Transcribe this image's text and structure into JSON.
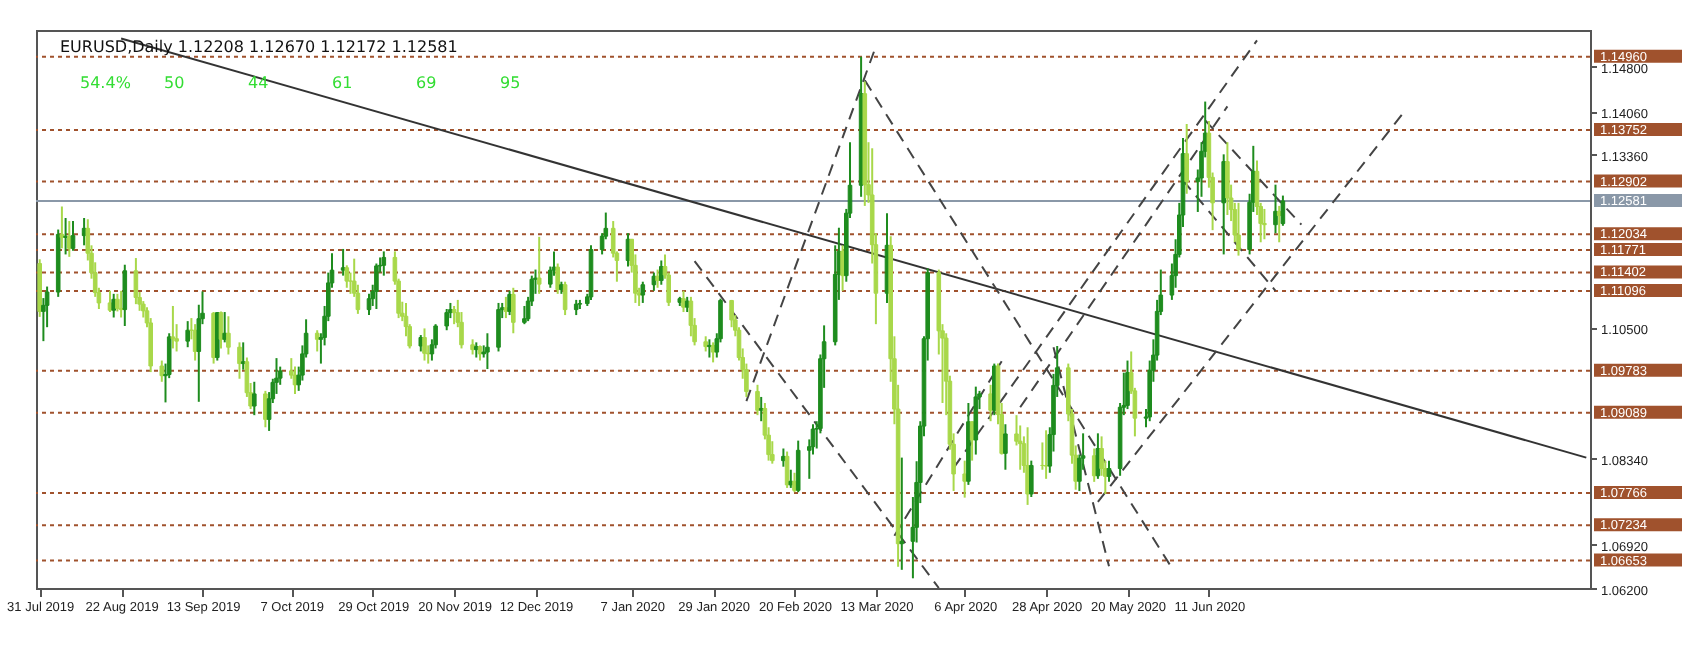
{
  "chart_data": {
    "type": "candlestick",
    "title": "EURUSD,Daily 1.12208 1.12670 1.12172 1.12581",
    "annotations": [
      "54.4%",
      "50",
      "44",
      "61",
      "69",
      "95"
    ],
    "xlim": [
      "2019-07-30",
      "2020-09-22"
    ],
    "xticks": [
      {
        "value": "2019-07-31",
        "label": "31 Jul 2019"
      },
      {
        "value": "2019-08-22",
        "label": "22 Aug 2019"
      },
      {
        "value": "2019-09-13",
        "label": "13 Sep 2019"
      },
      {
        "value": "2019-10-07",
        "label": "7 Oct 2019"
      },
      {
        "value": "2019-10-29",
        "label": "29 Oct 2019"
      },
      {
        "value": "2019-11-20",
        "label": "20 Nov 2019"
      },
      {
        "value": "2019-12-12",
        "label": "12 Dec 2019"
      },
      {
        "value": "2020-01-07",
        "label": "7 Jan 2020"
      },
      {
        "value": "2020-01-29",
        "label": "29 Jan 2020"
      },
      {
        "value": "2020-02-20",
        "label": "20 Feb 2020"
      },
      {
        "value": "2020-03-13",
        "label": "13 Mar 2020"
      },
      {
        "value": "2020-04-06",
        "label": "6 Apr 2020"
      },
      {
        "value": "2020-04-28",
        "label": "28 Apr 2020"
      },
      {
        "value": "2020-05-20",
        "label": "20 May 2020"
      },
      {
        "value": "2020-06-11",
        "label": "11 Jun 2020"
      }
    ],
    "ylim": [
      1.062,
      1.154
    ],
    "yticks": [
      {
        "value": 1.148,
        "label": "1.14800"
      },
      {
        "value": 1.1406,
        "label": "1.14060"
      },
      {
        "value": 1.1336,
        "label": "1.13360"
      },
      {
        "value": 1.105,
        "label": "1.10500"
      },
      {
        "value": 1.0834,
        "label": "1.08340"
      },
      {
        "value": 1.0692,
        "label": "1.06920"
      },
      {
        "value": 1.062,
        "label": "1.06200"
      }
    ],
    "x": [
      "2019-07-31",
      "2019-08-01",
      "2019-08-02",
      "2019-08-05",
      "2019-08-06",
      "2019-08-07",
      "2019-08-08",
      "2019-08-09",
      "2019-08-12",
      "2019-08-13",
      "2019-08-14",
      "2019-08-15",
      "2019-08-16",
      "2019-08-19",
      "2019-08-20",
      "2019-08-21",
      "2019-08-22",
      "2019-08-23",
      "2019-08-26",
      "2019-08-27",
      "2019-08-28",
      "2019-08-29",
      "2019-08-30",
      "2019-09-02",
      "2019-09-03",
      "2019-09-04",
      "2019-09-05",
      "2019-09-06",
      "2019-09-09",
      "2019-09-10",
      "2019-09-11",
      "2019-09-12",
      "2019-09-13",
      "2019-09-16",
      "2019-09-17",
      "2019-09-18",
      "2019-09-19",
      "2019-09-20",
      "2019-09-23",
      "2019-09-24",
      "2019-09-25",
      "2019-09-26",
      "2019-09-27",
      "2019-09-30",
      "2019-10-01",
      "2019-10-02",
      "2019-10-03",
      "2019-10-04",
      "2019-10-07",
      "2019-10-08",
      "2019-10-09",
      "2019-10-10",
      "2019-10-11",
      "2019-10-14",
      "2019-10-15",
      "2019-10-16",
      "2019-10-17",
      "2019-10-18",
      "2019-10-21",
      "2019-10-22",
      "2019-10-23",
      "2019-10-24",
      "2019-10-25",
      "2019-10-28",
      "2019-10-29",
      "2019-10-30",
      "2019-10-31",
      "2019-11-01",
      "2019-11-04",
      "2019-11-05",
      "2019-11-06",
      "2019-11-07",
      "2019-11-08",
      "2019-11-11",
      "2019-11-12",
      "2019-11-13",
      "2019-11-14",
      "2019-11-15",
      "2019-11-18",
      "2019-11-19",
      "2019-11-20",
      "2019-11-21",
      "2019-11-22",
      "2019-11-25",
      "2019-11-26",
      "2019-11-27",
      "2019-11-28",
      "2019-11-29",
      "2019-12-02",
      "2019-12-03",
      "2019-12-04",
      "2019-12-05",
      "2019-12-06",
      "2019-12-09",
      "2019-12-10",
      "2019-12-11",
      "2019-12-12",
      "2019-12-13",
      "2019-12-16",
      "2019-12-17",
      "2019-12-18",
      "2019-12-19",
      "2019-12-20",
      "2019-12-23",
      "2019-12-24",
      "2019-12-26",
      "2019-12-27",
      "2019-12-30",
      "2019-12-31",
      "2020-01-02",
      "2020-01-03",
      "2020-01-06",
      "2020-01-07",
      "2020-01-08",
      "2020-01-09",
      "2020-01-10",
      "2020-01-13",
      "2020-01-14",
      "2020-01-15",
      "2020-01-16",
      "2020-01-17",
      "2020-01-20",
      "2020-01-21",
      "2020-01-22",
      "2020-01-23",
      "2020-01-24",
      "2020-01-27",
      "2020-01-28",
      "2020-01-29",
      "2020-01-30",
      "2020-01-31",
      "2020-02-03",
      "2020-02-04",
      "2020-02-05",
      "2020-02-06",
      "2020-02-07",
      "2020-02-10",
      "2020-02-11",
      "2020-02-12",
      "2020-02-13",
      "2020-02-14",
      "2020-02-17",
      "2020-02-18",
      "2020-02-19",
      "2020-02-20",
      "2020-02-21",
      "2020-02-24",
      "2020-02-25",
      "2020-02-26",
      "2020-02-27",
      "2020-02-28",
      "2020-03-02",
      "2020-03-03",
      "2020-03-04",
      "2020-03-05",
      "2020-03-06",
      "2020-03-09",
      "2020-03-10",
      "2020-03-11",
      "2020-03-12",
      "2020-03-13",
      "2020-03-16",
      "2020-03-17",
      "2020-03-18",
      "2020-03-19",
      "2020-03-20",
      "2020-03-23",
      "2020-03-24",
      "2020-03-25",
      "2020-03-26",
      "2020-03-27",
      "2020-03-30",
      "2020-03-31",
      "2020-04-01",
      "2020-04-02",
      "2020-04-03",
      "2020-04-06",
      "2020-04-07",
      "2020-04-08",
      "2020-04-09",
      "2020-04-10",
      "2020-04-13",
      "2020-04-14",
      "2020-04-15",
      "2020-04-16",
      "2020-04-17",
      "2020-04-20",
      "2020-04-21",
      "2020-04-22",
      "2020-04-23",
      "2020-04-24",
      "2020-04-27",
      "2020-04-28",
      "2020-04-29",
      "2020-04-30",
      "2020-05-01",
      "2020-05-04",
      "2020-05-05",
      "2020-05-06",
      "2020-05-07",
      "2020-05-08",
      "2020-05-11",
      "2020-05-12",
      "2020-05-13",
      "2020-05-14",
      "2020-05-15",
      "2020-05-18",
      "2020-05-19",
      "2020-05-20",
      "2020-05-21",
      "2020-05-22",
      "2020-05-25",
      "2020-05-26",
      "2020-05-27",
      "2020-05-28",
      "2020-05-29",
      "2020-06-01",
      "2020-06-02",
      "2020-06-03",
      "2020-06-04",
      "2020-06-05",
      "2020-06-08",
      "2020-06-09",
      "2020-06-10",
      "2020-06-11",
      "2020-06-12",
      "2020-06-15",
      "2020-06-16",
      "2020-06-17",
      "2020-06-18",
      "2020-06-19",
      "2020-06-22",
      "2020-06-23",
      "2020-06-24",
      "2020-06-25",
      "2020-06-26",
      "2020-06-29",
      "2020-06-30",
      "2020-07-01"
    ],
    "ohlc": [
      [
        1.1155,
        1.1162,
        1.1067,
        1.1076
      ],
      [
        1.1076,
        1.1098,
        1.1027,
        1.1086
      ],
      [
        1.1086,
        1.1117,
        1.105,
        1.1108
      ],
      [
        1.1108,
        1.1211,
        1.11,
        1.1203
      ],
      [
        1.1203,
        1.1249,
        1.118,
        1.1198
      ],
      [
        1.1198,
        1.123,
        1.117,
        1.12
      ],
      [
        1.12,
        1.1225,
        1.1166,
        1.118
      ],
      [
        1.118,
        1.1225,
        1.1176,
        1.1201
      ],
      [
        1.1201,
        1.123,
        1.1185,
        1.1213
      ],
      [
        1.1213,
        1.1228,
        1.116,
        1.1172
      ],
      [
        1.1172,
        1.1185,
        1.113,
        1.114
      ],
      [
        1.114,
        1.1157,
        1.11,
        1.1107
      ],
      [
        1.1107,
        1.1115,
        1.108,
        1.109
      ],
      [
        1.109,
        1.111,
        1.1075,
        1.1078
      ],
      [
        1.1078,
        1.1105,
        1.1066,
        1.1096
      ],
      [
        1.1096,
        1.1105,
        1.1076,
        1.1081
      ],
      [
        1.1081,
        1.111,
        1.1066,
        1.1079
      ],
      [
        1.1079,
        1.1153,
        1.1052,
        1.1143
      ],
      [
        1.1143,
        1.1164,
        1.1088,
        1.1099
      ],
      [
        1.1099,
        1.1108,
        1.1077,
        1.1088
      ],
      [
        1.1088,
        1.1093,
        1.1066,
        1.1077
      ],
      [
        1.1077,
        1.1083,
        1.105,
        1.1057
      ],
      [
        1.1057,
        1.1065,
        1.0976,
        1.0986
      ],
      [
        1.0986,
        1.0995,
        1.096,
        1.097
      ],
      [
        1.097,
        1.099,
        1.0926,
        1.0972
      ],
      [
        1.0972,
        1.104,
        1.0966,
        1.1034
      ],
      [
        1.1034,
        1.1085,
        1.1015,
        1.1031
      ],
      [
        1.1031,
        1.1055,
        1.101,
        1.1027
      ],
      [
        1.1027,
        1.106,
        1.1017,
        1.1045
      ],
      [
        1.1045,
        1.1065,
        1.103,
        1.1045
      ],
      [
        1.1045,
        1.1055,
        1.0995,
        1.101
      ],
      [
        1.101,
        1.1087,
        1.0927,
        1.1064
      ],
      [
        1.1064,
        1.1109,
        1.1055,
        1.1073
      ],
      [
        1.1073,
        1.1075,
        1.099,
        1.1
      ],
      [
        1.1,
        1.1075,
        1.0995,
        1.1074
      ],
      [
        1.1074,
        1.1076,
        1.1015,
        1.103
      ],
      [
        1.103,
        1.1075,
        1.1025,
        1.104
      ],
      [
        1.104,
        1.1068,
        1.1005,
        1.1017
      ],
      [
        1.1017,
        1.1025,
        1.0965,
        1.099
      ],
      [
        1.099,
        1.1025,
        1.098,
        1.0993
      ],
      [
        1.0993,
        1.1,
        1.0935,
        1.0942
      ],
      [
        1.0942,
        1.0958,
        1.0915,
        1.092
      ],
      [
        1.092,
        1.096,
        1.0905,
        1.094
      ],
      [
        1.094,
        1.0945,
        1.0885,
        1.0898
      ],
      [
        1.0898,
        1.0943,
        1.0879,
        1.0932
      ],
      [
        1.0932,
        1.0965,
        1.0925,
        1.0959
      ],
      [
        1.0959,
        1.0999,
        1.094,
        1.0966
      ],
      [
        1.0966,
        1.0985,
        1.0955,
        1.0978
      ],
      [
        1.0978,
        1.0999,
        1.0965,
        1.0971
      ],
      [
        1.0971,
        1.0985,
        1.094,
        1.0955
      ],
      [
        1.0955,
        1.0985,
        1.0945,
        1.0971
      ],
      [
        1.0971,
        1.102,
        1.0962,
        1.1006
      ],
      [
        1.1006,
        1.1063,
        1.1,
        1.104
      ],
      [
        1.104,
        1.1045,
        1.101,
        1.103
      ],
      [
        1.103,
        1.104,
        1.099,
        1.1033
      ],
      [
        1.1033,
        1.1085,
        1.102,
        1.1068
      ],
      [
        1.1068,
        1.114,
        1.106,
        1.1123
      ],
      [
        1.1123,
        1.1172,
        1.1115,
        1.1144
      ],
      [
        1.1144,
        1.1179,
        1.1135,
        1.1148
      ],
      [
        1.1148,
        1.1152,
        1.1115,
        1.1126
      ],
      [
        1.1126,
        1.114,
        1.1105,
        1.1126
      ],
      [
        1.1126,
        1.1163,
        1.11,
        1.1106
      ],
      [
        1.1106,
        1.112,
        1.1072,
        1.1079
      ],
      [
        1.1079,
        1.1105,
        1.107,
        1.1097
      ],
      [
        1.1097,
        1.112,
        1.1085,
        1.1109
      ],
      [
        1.1109,
        1.1155,
        1.108,
        1.1151
      ],
      [
        1.1151,
        1.1165,
        1.114,
        1.1152
      ],
      [
        1.1152,
        1.1175,
        1.1135,
        1.1165
      ],
      [
        1.1165,
        1.1175,
        1.112,
        1.1126
      ],
      [
        1.1126,
        1.113,
        1.1065,
        1.1073
      ],
      [
        1.1073,
        1.1092,
        1.106,
        1.1068
      ],
      [
        1.1068,
        1.109,
        1.1035,
        1.1051
      ],
      [
        1.1051,
        1.1055,
        1.1015,
        1.1019
      ],
      [
        1.1019,
        1.1037,
        1.101,
        1.1033
      ],
      [
        1.1033,
        1.1048,
        1.0995,
        1.1007
      ],
      [
        1.1007,
        1.102,
        1.099,
        1.1006
      ],
      [
        1.1006,
        1.103,
        1.0995,
        1.1021
      ],
      [
        1.1021,
        1.1055,
        1.1015,
        1.1052
      ],
      [
        1.1052,
        1.108,
        1.1045,
        1.1074
      ],
      [
        1.1074,
        1.109,
        1.1065,
        1.1079
      ],
      [
        1.1079,
        1.1085,
        1.1055,
        1.1074
      ],
      [
        1.1074,
        1.1095,
        1.105,
        1.1058
      ],
      [
        1.1058,
        1.1075,
        1.1015,
        1.1021
      ],
      [
        1.1021,
        1.103,
        1.1005,
        1.1013
      ],
      [
        1.1013,
        1.1025,
        1.1,
        1.1018
      ],
      [
        1.1018,
        1.102,
        1.0995,
        1.1006
      ],
      [
        1.1006,
        1.102,
        1.1,
        1.1009
      ],
      [
        1.1009,
        1.104,
        1.0981,
        1.1017
      ],
      [
        1.1017,
        1.109,
        1.101,
        1.1079
      ],
      [
        1.1079,
        1.109,
        1.1065,
        1.1082
      ],
      [
        1.1082,
        1.11,
        1.1065,
        1.1076
      ],
      [
        1.1076,
        1.111,
        1.107,
        1.1104
      ],
      [
        1.1104,
        1.1115,
        1.104,
        1.1058
      ],
      [
        1.1058,
        1.1085,
        1.1055,
        1.1064
      ],
      [
        1.1064,
        1.11,
        1.106,
        1.1093
      ],
      [
        1.1093,
        1.1135,
        1.1085,
        1.1129
      ],
      [
        1.1129,
        1.1145,
        1.1105,
        1.1131
      ],
      [
        1.1131,
        1.1199,
        1.1105,
        1.1121
      ],
      [
        1.1121,
        1.115,
        1.1115,
        1.1144
      ],
      [
        1.1144,
        1.1175,
        1.1135,
        1.1149
      ],
      [
        1.1149,
        1.1155,
        1.1105,
        1.1112
      ],
      [
        1.1112,
        1.1125,
        1.1105,
        1.112
      ],
      [
        1.112,
        1.1125,
        1.107,
        1.1079
      ],
      [
        1.1079,
        1.1095,
        1.107,
        1.1088
      ],
      [
        1.1088,
        1.1095,
        1.108,
        1.1089
      ],
      [
        1.1089,
        1.1105,
        1.1085,
        1.11
      ],
      [
        1.11,
        1.1185,
        1.1095,
        1.1178
      ],
      [
        1.1178,
        1.1205,
        1.117,
        1.12
      ],
      [
        1.12,
        1.1239,
        1.1195,
        1.1213
      ],
      [
        1.1213,
        1.1225,
        1.1165,
        1.1172
      ],
      [
        1.1172,
        1.1175,
        1.1125,
        1.116
      ],
      [
        1.116,
        1.1205,
        1.115,
        1.1195
      ],
      [
        1.1195,
        1.1195,
        1.114,
        1.1152
      ],
      [
        1.1152,
        1.117,
        1.109,
        1.1106
      ],
      [
        1.1106,
        1.1115,
        1.1085,
        1.1103
      ],
      [
        1.1103,
        1.1125,
        1.109,
        1.112
      ],
      [
        1.112,
        1.114,
        1.111,
        1.1134
      ],
      [
        1.1134,
        1.1145,
        1.1115,
        1.1127
      ],
      [
        1.1127,
        1.116,
        1.112,
        1.115
      ],
      [
        1.115,
        1.117,
        1.113,
        1.1136
      ],
      [
        1.1136,
        1.114,
        1.1085,
        1.1091
      ],
      [
        1.1091,
        1.11,
        1.1085,
        1.1097
      ],
      [
        1.1097,
        1.111,
        1.1075,
        1.1083
      ],
      [
        1.1083,
        1.11,
        1.1075,
        1.1093
      ],
      [
        1.1093,
        1.11,
        1.1035,
        1.1053
      ],
      [
        1.1053,
        1.1065,
        1.102,
        1.1026
      ],
      [
        1.1026,
        1.1035,
        1.101,
        1.1018
      ],
      [
        1.1018,
        1.103,
        1.1,
        1.102
      ],
      [
        1.102,
        1.1025,
        1.0992,
        1.1009
      ],
      [
        1.1009,
        1.104,
        1.1,
        1.1031
      ],
      [
        1.1031,
        1.1097,
        1.1025,
        1.1094
      ],
      [
        1.1094,
        1.1095,
        1.105,
        1.1062
      ],
      [
        1.1062,
        1.107,
        1.1035,
        1.1045
      ],
      [
        1.1045,
        1.105,
        1.0995,
        1.1
      ],
      [
        1.1,
        1.1015,
        1.0965,
        1.098
      ],
      [
        1.098,
        1.099,
        1.0935,
        1.0944
      ],
      [
        1.0944,
        1.0955,
        1.0905,
        1.0913
      ],
      [
        1.0913,
        1.0935,
        1.0895,
        1.0916
      ],
      [
        1.0916,
        1.0925,
        1.0865,
        1.0872
      ],
      [
        1.0872,
        1.0885,
        1.083,
        1.084
      ],
      [
        1.084,
        1.0862,
        1.0825,
        1.083
      ],
      [
        1.083,
        1.085,
        1.082,
        1.0837
      ],
      [
        1.0837,
        1.0845,
        1.0785,
        1.079
      ],
      [
        1.079,
        1.0815,
        1.0785,
        1.0796
      ],
      [
        1.0796,
        1.081,
        1.0778,
        1.0781
      ],
      [
        1.0781,
        1.0863,
        1.0778,
        1.0847
      ],
      [
        1.0847,
        1.0865,
        1.08,
        1.0853
      ],
      [
        1.0853,
        1.089,
        1.084,
        1.0882
      ],
      [
        1.0882,
        1.0895,
        1.085,
        1.0883
      ],
      [
        1.0883,
        1.1005,
        1.0875,
        1.0998
      ],
      [
        1.0998,
        1.1053,
        1.095,
        1.1026
      ],
      [
        1.1026,
        1.1185,
        1.102,
        1.1137
      ],
      [
        1.1137,
        1.1214,
        1.1095,
        1.1175
      ],
      [
        1.1175,
        1.1185,
        1.111,
        1.1135
      ],
      [
        1.1135,
        1.1245,
        1.1125,
        1.1238
      ],
      [
        1.1238,
        1.1355,
        1.123,
        1.1284
      ],
      [
        1.1284,
        1.1496,
        1.1265,
        1.1435
      ],
      [
        1.1435,
        1.1455,
        1.125,
        1.1285
      ],
      [
        1.1285,
        1.1355,
        1.1255,
        1.1268
      ],
      [
        1.1268,
        1.1345,
        1.1155,
        1.1186
      ],
      [
        1.1186,
        1.1205,
        1.1055,
        1.1106
      ],
      [
        1.1106,
        1.1238,
        1.109,
        1.1185
      ],
      [
        1.1185,
        1.12,
        1.096,
        1.0998
      ],
      [
        1.0998,
        1.1035,
        1.089,
        1.0915
      ],
      [
        1.0915,
        1.0955,
        1.0655,
        1.0693
      ],
      [
        1.0693,
        1.0835,
        1.065,
        1.0697
      ],
      [
        1.0697,
        1.077,
        1.0636,
        1.072
      ],
      [
        1.072,
        1.0829,
        1.0695,
        1.0794
      ],
      [
        1.0794,
        1.0895,
        1.076,
        1.0887
      ],
      [
        1.0887,
        1.1035,
        1.087,
        1.1031
      ],
      [
        1.1031,
        1.1147,
        1.0995,
        1.114
      ],
      [
        1.114,
        1.1145,
        1.1005,
        1.1044
      ],
      [
        1.1044,
        1.1055,
        1.0925,
        1.1032
      ],
      [
        1.1032,
        1.104,
        1.0905,
        1.0961
      ],
      [
        1.0961,
        1.097,
        1.0848,
        1.0857
      ],
      [
        1.0857,
        1.0875,
        1.078,
        1.0808
      ],
      [
        1.0808,
        1.083,
        1.0769,
        1.0796
      ],
      [
        1.0796,
        1.0925,
        1.079,
        1.0894
      ],
      [
        1.0894,
        1.0895,
        1.083,
        1.0864
      ],
      [
        1.0864,
        1.0952,
        1.084,
        1.0935
      ],
      [
        1.0935,
        1.0945,
        1.0915,
        1.094
      ],
      [
        1.094,
        1.0955,
        1.0895,
        1.0913
      ],
      [
        1.0913,
        1.099,
        1.0905,
        1.0986
      ],
      [
        1.0986,
        1.099,
        1.089,
        1.0906
      ],
      [
        1.0906,
        1.0925,
        1.084,
        1.0842
      ],
      [
        1.0842,
        1.089,
        1.0815,
        1.0874
      ],
      [
        1.0874,
        1.0905,
        1.0855,
        1.0862
      ],
      [
        1.0862,
        1.0888,
        1.0815,
        1.0858
      ],
      [
        1.0858,
        1.087,
        1.081,
        1.0822
      ],
      [
        1.0822,
        1.0885,
        1.0757,
        1.0775
      ],
      [
        1.0775,
        1.083,
        1.077,
        1.0822
      ],
      [
        1.0822,
        1.086,
        1.0815,
        1.0822
      ],
      [
        1.0822,
        1.088,
        1.08,
        1.0821
      ],
      [
        1.0821,
        1.0885,
        1.081,
        1.0873
      ],
      [
        1.0873,
        1.0973,
        1.0845,
        1.0954
      ],
      [
        1.0954,
        1.1019,
        1.0935,
        1.0983
      ],
      [
        1.0983,
        1.099,
        1.0895,
        1.0907
      ],
      [
        1.0907,
        1.0915,
        1.0825,
        1.0839
      ],
      [
        1.0839,
        1.0855,
        1.0782,
        1.0796
      ],
      [
        1.0796,
        1.084,
        1.078,
        1.0834
      ],
      [
        1.0834,
        1.0875,
        1.0815,
        1.0838
      ],
      [
        1.0838,
        1.085,
        1.0795,
        1.0805
      ],
      [
        1.0805,
        1.0875,
        1.08,
        1.085
      ],
      [
        1.085,
        1.087,
        1.0805,
        1.0817
      ],
      [
        1.0817,
        1.083,
        1.0775,
        1.0804
      ],
      [
        1.0804,
        1.083,
        1.0795,
        1.0817
      ],
      [
        1.0817,
        1.0925,
        1.0805,
        1.0918
      ],
      [
        1.0918,
        1.0975,
        1.0905,
        1.0921
      ],
      [
        1.0921,
        1.0995,
        1.0915,
        1.0975
      ],
      [
        1.0975,
        1.101,
        1.094,
        1.0945
      ],
      [
        1.0945,
        1.095,
        1.087,
        1.09
      ],
      [
        1.09,
        1.0915,
        1.0885,
        1.0902
      ],
      [
        1.0902,
        1.0995,
        1.0895,
        1.0979
      ],
      [
        1.0979,
        1.103,
        1.096,
        1.1004
      ],
      [
        1.1004,
        1.1095,
        1.0995,
        1.1076
      ],
      [
        1.1076,
        1.1145,
        1.107,
        1.1103
      ],
      [
        1.1103,
        1.1155,
        1.1095,
        1.1135
      ],
      [
        1.1135,
        1.1195,
        1.1115,
        1.117
      ],
      [
        1.117,
        1.1255,
        1.1165,
        1.1235
      ],
      [
        1.1235,
        1.1362,
        1.1215,
        1.1336
      ],
      [
        1.1336,
        1.1385,
        1.127,
        1.129
      ],
      [
        1.129,
        1.131,
        1.124,
        1.1296
      ],
      [
        1.1296,
        1.1355,
        1.1265,
        1.134
      ],
      [
        1.134,
        1.1422,
        1.133,
        1.137
      ],
      [
        1.137,
        1.139,
        1.128,
        1.1297
      ],
      [
        1.1297,
        1.1305,
        1.121,
        1.1255
      ],
      [
        1.1255,
        1.1335,
        1.117,
        1.1323
      ],
      [
        1.1323,
        1.1355,
        1.1235,
        1.1263
      ],
      [
        1.1263,
        1.1285,
        1.1225,
        1.1244
      ],
      [
        1.1244,
        1.1255,
        1.119,
        1.1202
      ],
      [
        1.1202,
        1.1255,
        1.1168,
        1.1178
      ],
      [
        1.1178,
        1.127,
        1.117,
        1.1256
      ],
      [
        1.1256,
        1.1349,
        1.124,
        1.1307
      ],
      [
        1.1307,
        1.1325,
        1.1235,
        1.1249
      ],
      [
        1.1249,
        1.1255,
        1.119,
        1.1221
      ],
      [
        1.1221,
        1.1245,
        1.1195,
        1.1219
      ],
      [
        1.1219,
        1.1285,
        1.1205,
        1.1241
      ],
      [
        1.1241,
        1.125,
        1.119,
        1.1234
      ],
      [
        1.12208,
        1.1267,
        1.12172,
        1.12581
      ]
    ],
    "colors": [
      "#a8d84a",
      "#1e8c1e",
      "#1e8c1e",
      "#1e8c1e",
      "#a8d84a",
      "#1e8c1e",
      "#a8d84a",
      "#1e8c1e",
      "#1e8c1e",
      "#a8d84a",
      "#a8d84a",
      "#a8d84a",
      "#a8d84a",
      "#a8d84a",
      "#1e8c1e",
      "#a8d84a",
      "#a8d84a",
      "#1e8c1e",
      "#a8d84a",
      "#a8d84a",
      "#a8d84a",
      "#a8d84a",
      "#a8d84a",
      "#a8d84a",
      "#1e8c1e",
      "#1e8c1e",
      "#a8d84a",
      "#a8d84a",
      "#1e8c1e",
      "#a8d84a",
      "#a8d84a",
      "#1e8c1e",
      "#1e8c1e",
      "#a8d84a",
      "#1e8c1e",
      "#a8d84a",
      "#1e8c1e",
      "#a8d84a",
      "#a8d84a",
      "#1e8c1e",
      "#a8d84a",
      "#a8d84a",
      "#1e8c1e",
      "#a8d84a",
      "#1e8c1e",
      "#1e8c1e",
      "#1e8c1e",
      "#1e8c1e",
      "#a8d84a",
      "#a8d84a",
      "#1e8c1e",
      "#1e8c1e",
      "#1e8c1e",
      "#a8d84a",
      "#1e8c1e",
      "#1e8c1e",
      "#1e8c1e",
      "#1e8c1e",
      "#1e8c1e",
      "#a8d84a",
      "#a8d84a",
      "#a8d84a",
      "#a8d84a",
      "#1e8c1e",
      "#1e8c1e",
      "#1e8c1e",
      "#1e8c1e",
      "#1e8c1e",
      "#a8d84a",
      "#a8d84a",
      "#a8d84a",
      "#a8d84a",
      "#a8d84a",
      "#1e8c1e",
      "#a8d84a",
      "#a8d84a",
      "#1e8c1e",
      "#1e8c1e",
      "#1e8c1e",
      "#1e8c1e",
      "#a8d84a",
      "#a8d84a",
      "#a8d84a",
      "#a8d84a",
      "#1e8c1e",
      "#a8d84a",
      "#1e8c1e",
      "#1e8c1e",
      "#1e8c1e",
      "#1e8c1e",
      "#a8d84a",
      "#1e8c1e",
      "#a8d84a",
      "#1e8c1e",
      "#1e8c1e",
      "#1e8c1e",
      "#1e8c1e",
      "#a8d84a",
      "#1e8c1e",
      "#1e8c1e",
      "#a8d84a",
      "#1e8c1e",
      "#a8d84a",
      "#1e8c1e",
      "#1e8c1e",
      "#1e8c1e",
      "#1e8c1e",
      "#1e8c1e",
      "#1e8c1e",
      "#a8d84a",
      "#a8d84a",
      "#1e8c1e",
      "#a8d84a",
      "#a8d84a",
      "#a8d84a",
      "#1e8c1e",
      "#1e8c1e",
      "#a8d84a",
      "#1e8c1e",
      "#a8d84a",
      "#a8d84a",
      "#1e8c1e",
      "#a8d84a",
      "#1e8c1e",
      "#a8d84a",
      "#a8d84a",
      "#a8d84a",
      "#1e8c1e",
      "#a8d84a",
      "#1e8c1e",
      "#1e8c1e",
      "#a8d84a",
      "#a8d84a",
      "#a8d84a",
      "#a8d84a",
      "#a8d84a",
      "#a8d84a",
      "#1e8c1e",
      "#a8d84a",
      "#a8d84a",
      "#a8d84a",
      "#1e8c1e",
      "#a8d84a",
      "#1e8c1e",
      "#a8d84a",
      "#1e8c1e",
      "#1e8c1e",
      "#1e8c1e",
      "#1e8c1e",
      "#1e8c1e",
      "#1e8c1e",
      "#1e8c1e",
      "#1e8c1e",
      "#a8d84a",
      "#1e8c1e",
      "#1e8c1e",
      "#1e8c1e",
      "#a8d84a",
      "#a8d84a",
      "#a8d84a",
      "#a8d84a",
      "#1e8c1e",
      "#a8d84a",
      "#a8d84a",
      "#a8d84a",
      "#1e8c1e",
      "#1e8c1e",
      "#1e8c1e",
      "#1e8c1e",
      "#1e8c1e",
      "#1e8c1e",
      "#a8d84a",
      "#a8d84a",
      "#a8d84a",
      "#a8d84a",
      "#a8d84a",
      "#a8d84a",
      "#1e8c1e",
      "#a8d84a",
      "#1e8c1e",
      "#1e8c1e",
      "#a8d84a",
      "#1e8c1e",
      "#a8d84a",
      "#a8d84a",
      "#1e8c1e",
      "#a8d84a",
      "#a8d84a",
      "#a8d84a",
      "#a8d84a",
      "#1e8c1e",
      "#a8d84a",
      "#a8d84a",
      "#1e8c1e",
      "#1e8c1e",
      "#1e8c1e",
      "#a8d84a",
      "#a8d84a",
      "#a8d84a",
      "#1e8c1e",
      "#1e8c1e",
      "#a8d84a",
      "#1e8c1e",
      "#a8d84a",
      "#a8d84a",
      "#1e8c1e",
      "#1e8c1e",
      "#1e8c1e",
      "#1e8c1e",
      "#a8d84a",
      "#a8d84a",
      "#1e8c1e",
      "#1e8c1e",
      "#1e8c1e",
      "#1e8c1e",
      "#1e8c1e",
      "#1e8c1e",
      "#1e8c1e",
      "#1e8c1e",
      "#1e8c1e",
      "#a8d84a",
      "#1e8c1e",
      "#1e8c1e",
      "#1e8c1e",
      "#a8d84a",
      "#a8d84a",
      "#1e8c1e",
      "#a8d84a",
      "#a8d84a",
      "#a8d84a",
      "#a8d84a",
      "#1e8c1e",
      "#1e8c1e",
      "#a8d84a",
      "#a8d84a",
      "#a8d84a",
      "#1e8c1e",
      "#a8d84a",
      "#1e8c1e"
    ],
    "ref_lines": [
      {
        "axis": "y",
        "value": 1.1496,
        "label": "1.14960",
        "color": "#a0522d",
        "line_style": "dotted"
      },
      {
        "axis": "y",
        "value": 1.13752,
        "label": "1.13752",
        "color": "#a0522d",
        "line_style": "dotted"
      },
      {
        "axis": "y",
        "value": 1.12902,
        "label": "1.12902",
        "color": "#a0522d",
        "line_style": "dotted"
      },
      {
        "axis": "y",
        "value": 1.12581,
        "label": "1.12581",
        "color": "#8a98a8",
        "line_style": "solid"
      },
      {
        "axis": "y",
        "value": 1.12034,
        "label": "1.12034",
        "color": "#a0522d",
        "line_style": "dotted"
      },
      {
        "axis": "y",
        "value": 1.11771,
        "label": "1.11771",
        "color": "#a0522d",
        "line_style": "dotted"
      },
      {
        "axis": "y",
        "value": 1.11402,
        "label": "1.11402",
        "color": "#a0522d",
        "line_style": "dotted"
      },
      {
        "axis": "y",
        "value": 1.11096,
        "label": "1.11096",
        "color": "#a0522d",
        "line_style": "dotted"
      },
      {
        "axis": "y",
        "value": 1.09783,
        "label": "1.09783",
        "color": "#a0522d",
        "line_style": "dotted"
      },
      {
        "axis": "y",
        "value": 1.09089,
        "label": "1.09089",
        "color": "#a0522d",
        "line_style": "dotted"
      },
      {
        "axis": "y",
        "value": 1.07766,
        "label": "1.07766",
        "color": "#a0522d",
        "line_style": "dotted"
      },
      {
        "axis": "y",
        "value": 1.07234,
        "label": "1.07234",
        "color": "#a0522d",
        "line_style": "dotted"
      },
      {
        "axis": "y",
        "value": 1.06653,
        "label": "1.06653",
        "color": "#a0522d",
        "line_style": "dotted"
      }
    ],
    "series": [
      {
        "type": "line",
        "x": [
          "2019-08-22",
          "2020-09-21"
        ],
        "values": [
          1.1526,
          1.0835
        ],
        "color": "#333333",
        "line_style": "solid"
      },
      {
        "type": "line",
        "x": [
          "2020-02-07",
          "2020-03-13"
        ],
        "values": [
          1.0928,
          1.1513
        ],
        "color": "#444444",
        "line_style": "dashed"
      },
      {
        "type": "line",
        "x": [
          "2020-03-10",
          "2020-06-01"
        ],
        "values": [
          1.1457,
          1.0653
        ],
        "color": "#444444",
        "line_style": "dashed"
      },
      {
        "type": "line",
        "x": [
          "2020-01-24",
          "2020-03-30"
        ],
        "values": [
          1.1159,
          1.062
        ],
        "color": "#444444",
        "line_style": "dashed"
      },
      {
        "type": "line",
        "x": [
          "2020-04-03",
          "2020-06-24"
        ],
        "values": [
          1.0818,
          1.1523
        ],
        "color": "#444444",
        "line_style": "dashed"
      },
      {
        "type": "line",
        "x": [
          "2020-05-12",
          "2020-08-03"
        ],
        "values": [
          1.0762,
          1.1407
        ],
        "color": "#444444",
        "line_style": "dashed"
      },
      {
        "type": "line",
        "x": [
          "2020-04-21",
          "2020-06-16"
        ],
        "values": [
          1.0918,
          1.1414
        ],
        "color": "#444444",
        "line_style": "dashed"
      },
      {
        "type": "line",
        "x": [
          "2020-06-04",
          "2020-06-29"
        ],
        "values": [
          1.1292,
          1.111
        ],
        "color": "#444444",
        "line_style": "dashed"
      },
      {
        "type": "line",
        "x": [
          "2020-06-10",
          "2020-07-06"
        ],
        "values": [
          1.1391,
          1.1219
        ],
        "color": "#444444",
        "line_style": "dashed"
      },
      {
        "type": "line",
        "x": [
          "2020-04-30",
          "2020-05-15"
        ],
        "values": [
          1.1017,
          1.0656
        ],
        "color": "#444444",
        "line_style": "dashed"
      },
      {
        "type": "line",
        "x": [
          "2020-03-18",
          "2020-04-16"
        ],
        "values": [
          1.0706,
          1.0994
        ],
        "color": "#444444",
        "line_style": "dashed"
      }
    ]
  }
}
